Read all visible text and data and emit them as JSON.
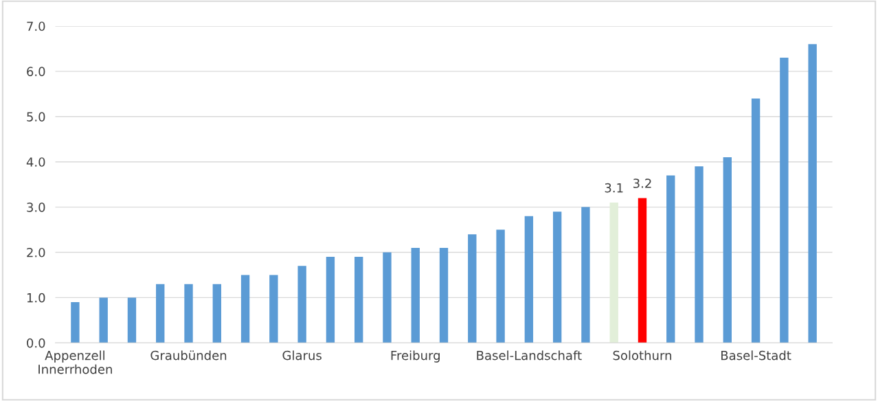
{
  "chart_data": {
    "type": "bar",
    "categories": [
      "Appenzell\nInnerrhoden",
      null,
      null,
      null,
      "Graubünden",
      null,
      null,
      null,
      "Glarus",
      null,
      null,
      null,
      "Freiburg",
      null,
      null,
      null,
      "Basel-Landschaft",
      null,
      null,
      null,
      "Solothurn",
      null,
      null,
      null,
      "Basel-Stadt",
      null,
      null
    ],
    "values": [
      0.9,
      1.0,
      1.0,
      1.3,
      1.3,
      1.3,
      1.5,
      1.5,
      1.7,
      1.9,
      1.9,
      2.0,
      2.1,
      2.1,
      2.4,
      2.5,
      2.8,
      2.9,
      3.0,
      3.1,
      3.2,
      3.7,
      3.9,
      4.1,
      5.4,
      6.3,
      6.6
    ],
    "colors": [
      "#5b9bd5",
      "#5b9bd5",
      "#5b9bd5",
      "#5b9bd5",
      "#5b9bd5",
      "#5b9bd5",
      "#5b9bd5",
      "#5b9bd5",
      "#5b9bd5",
      "#5b9bd5",
      "#5b9bd5",
      "#5b9bd5",
      "#5b9bd5",
      "#5b9bd5",
      "#5b9bd5",
      "#5b9bd5",
      "#5b9bd5",
      "#5b9bd5",
      "#5b9bd5",
      "#e2efd9",
      "#ff0000",
      "#5b9bd5",
      "#5b9bd5",
      "#5b9bd5",
      "#5b9bd5",
      "#5b9bd5",
      "#5b9bd5"
    ],
    "value_labels": [
      null,
      null,
      null,
      null,
      null,
      null,
      null,
      null,
      null,
      null,
      null,
      null,
      null,
      null,
      null,
      null,
      null,
      null,
      null,
      "3.1",
      "3.2",
      null,
      null,
      null,
      null,
      null,
      null
    ],
    "ylim": [
      0,
      7
    ],
    "yticks": [
      {
        "value": 0,
        "label": "0.0"
      },
      {
        "value": 1,
        "label": "1.0"
      },
      {
        "value": 2,
        "label": "2.0"
      },
      {
        "value": 3,
        "label": "3.0"
      },
      {
        "value": 4,
        "label": "4.0"
      },
      {
        "value": 5,
        "label": "5.0"
      },
      {
        "value": 6,
        "label": "6.0"
      },
      {
        "value": 7,
        "label": "7.0"
      }
    ],
    "grid": "y",
    "legend": false
  }
}
